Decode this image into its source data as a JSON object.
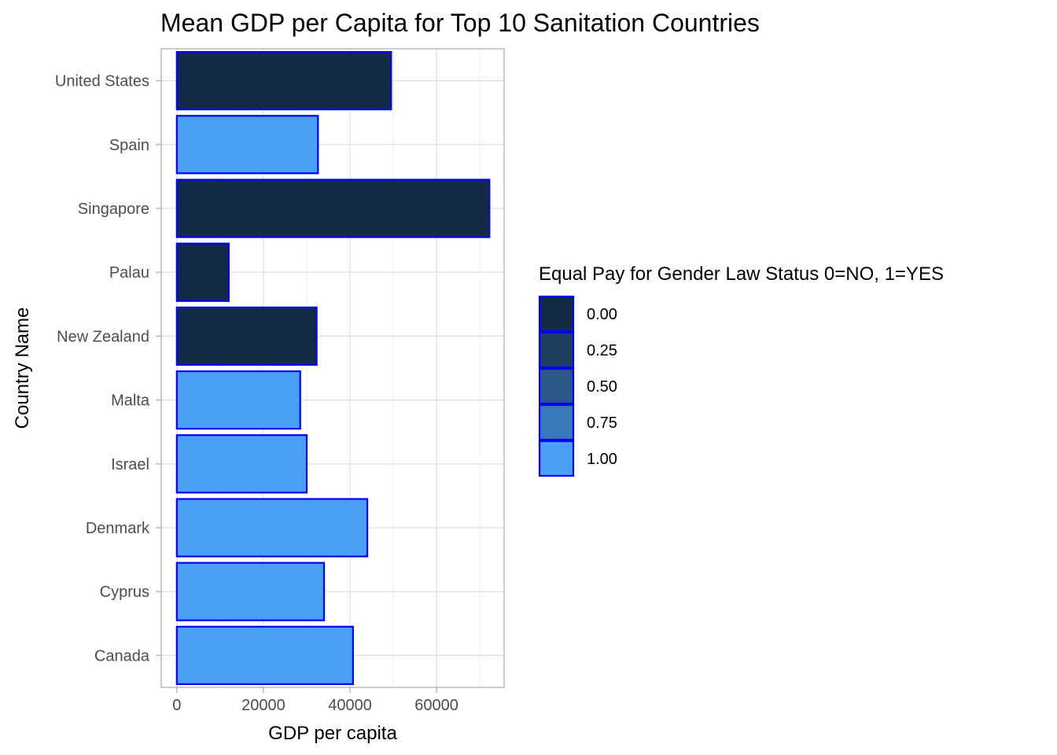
{
  "chart_data": {
    "type": "bar",
    "orientation": "horizontal",
    "title": "Mean GDP per Capita for Top 10 Sanitation Countries",
    "xlabel": "GDP per capita",
    "ylabel": "Country Name",
    "xlim": [
      -3600,
      75600
    ],
    "x_ticks": [
      0,
      20000,
      40000,
      60000
    ],
    "x_tick_labels": [
      "0",
      "20000",
      "40000",
      "60000"
    ],
    "grid": true,
    "legend_position": "right",
    "categories": [
      "United States",
      "Spain",
      "Singapore",
      "Palau",
      "New Zealand",
      "Malta",
      "Israel",
      "Denmark",
      "Cyprus",
      "Canada"
    ],
    "values": [
      49500,
      32600,
      72200,
      12000,
      32300,
      28500,
      30000,
      44000,
      34000,
      40700
    ],
    "fill_values": [
      0,
      1,
      0,
      0,
      0,
      1,
      1,
      1,
      1,
      1
    ],
    "bar_outline_color": "#0000ff",
    "legend": {
      "title": "Equal Pay for Gender Law Status 0=NO, 1=YES",
      "entries": [
        {
          "label": "0.00",
          "color": "#132b43"
        },
        {
          "label": "0.25",
          "color": "#1d3f60"
        },
        {
          "label": "0.50",
          "color": "#2b5886"
        },
        {
          "label": "0.75",
          "color": "#3a79b8"
        },
        {
          "label": "1.00",
          "color": "#4a9ff7"
        }
      ]
    },
    "colors": {
      "low": "#132b43",
      "high": "#4a9ff7"
    }
  }
}
